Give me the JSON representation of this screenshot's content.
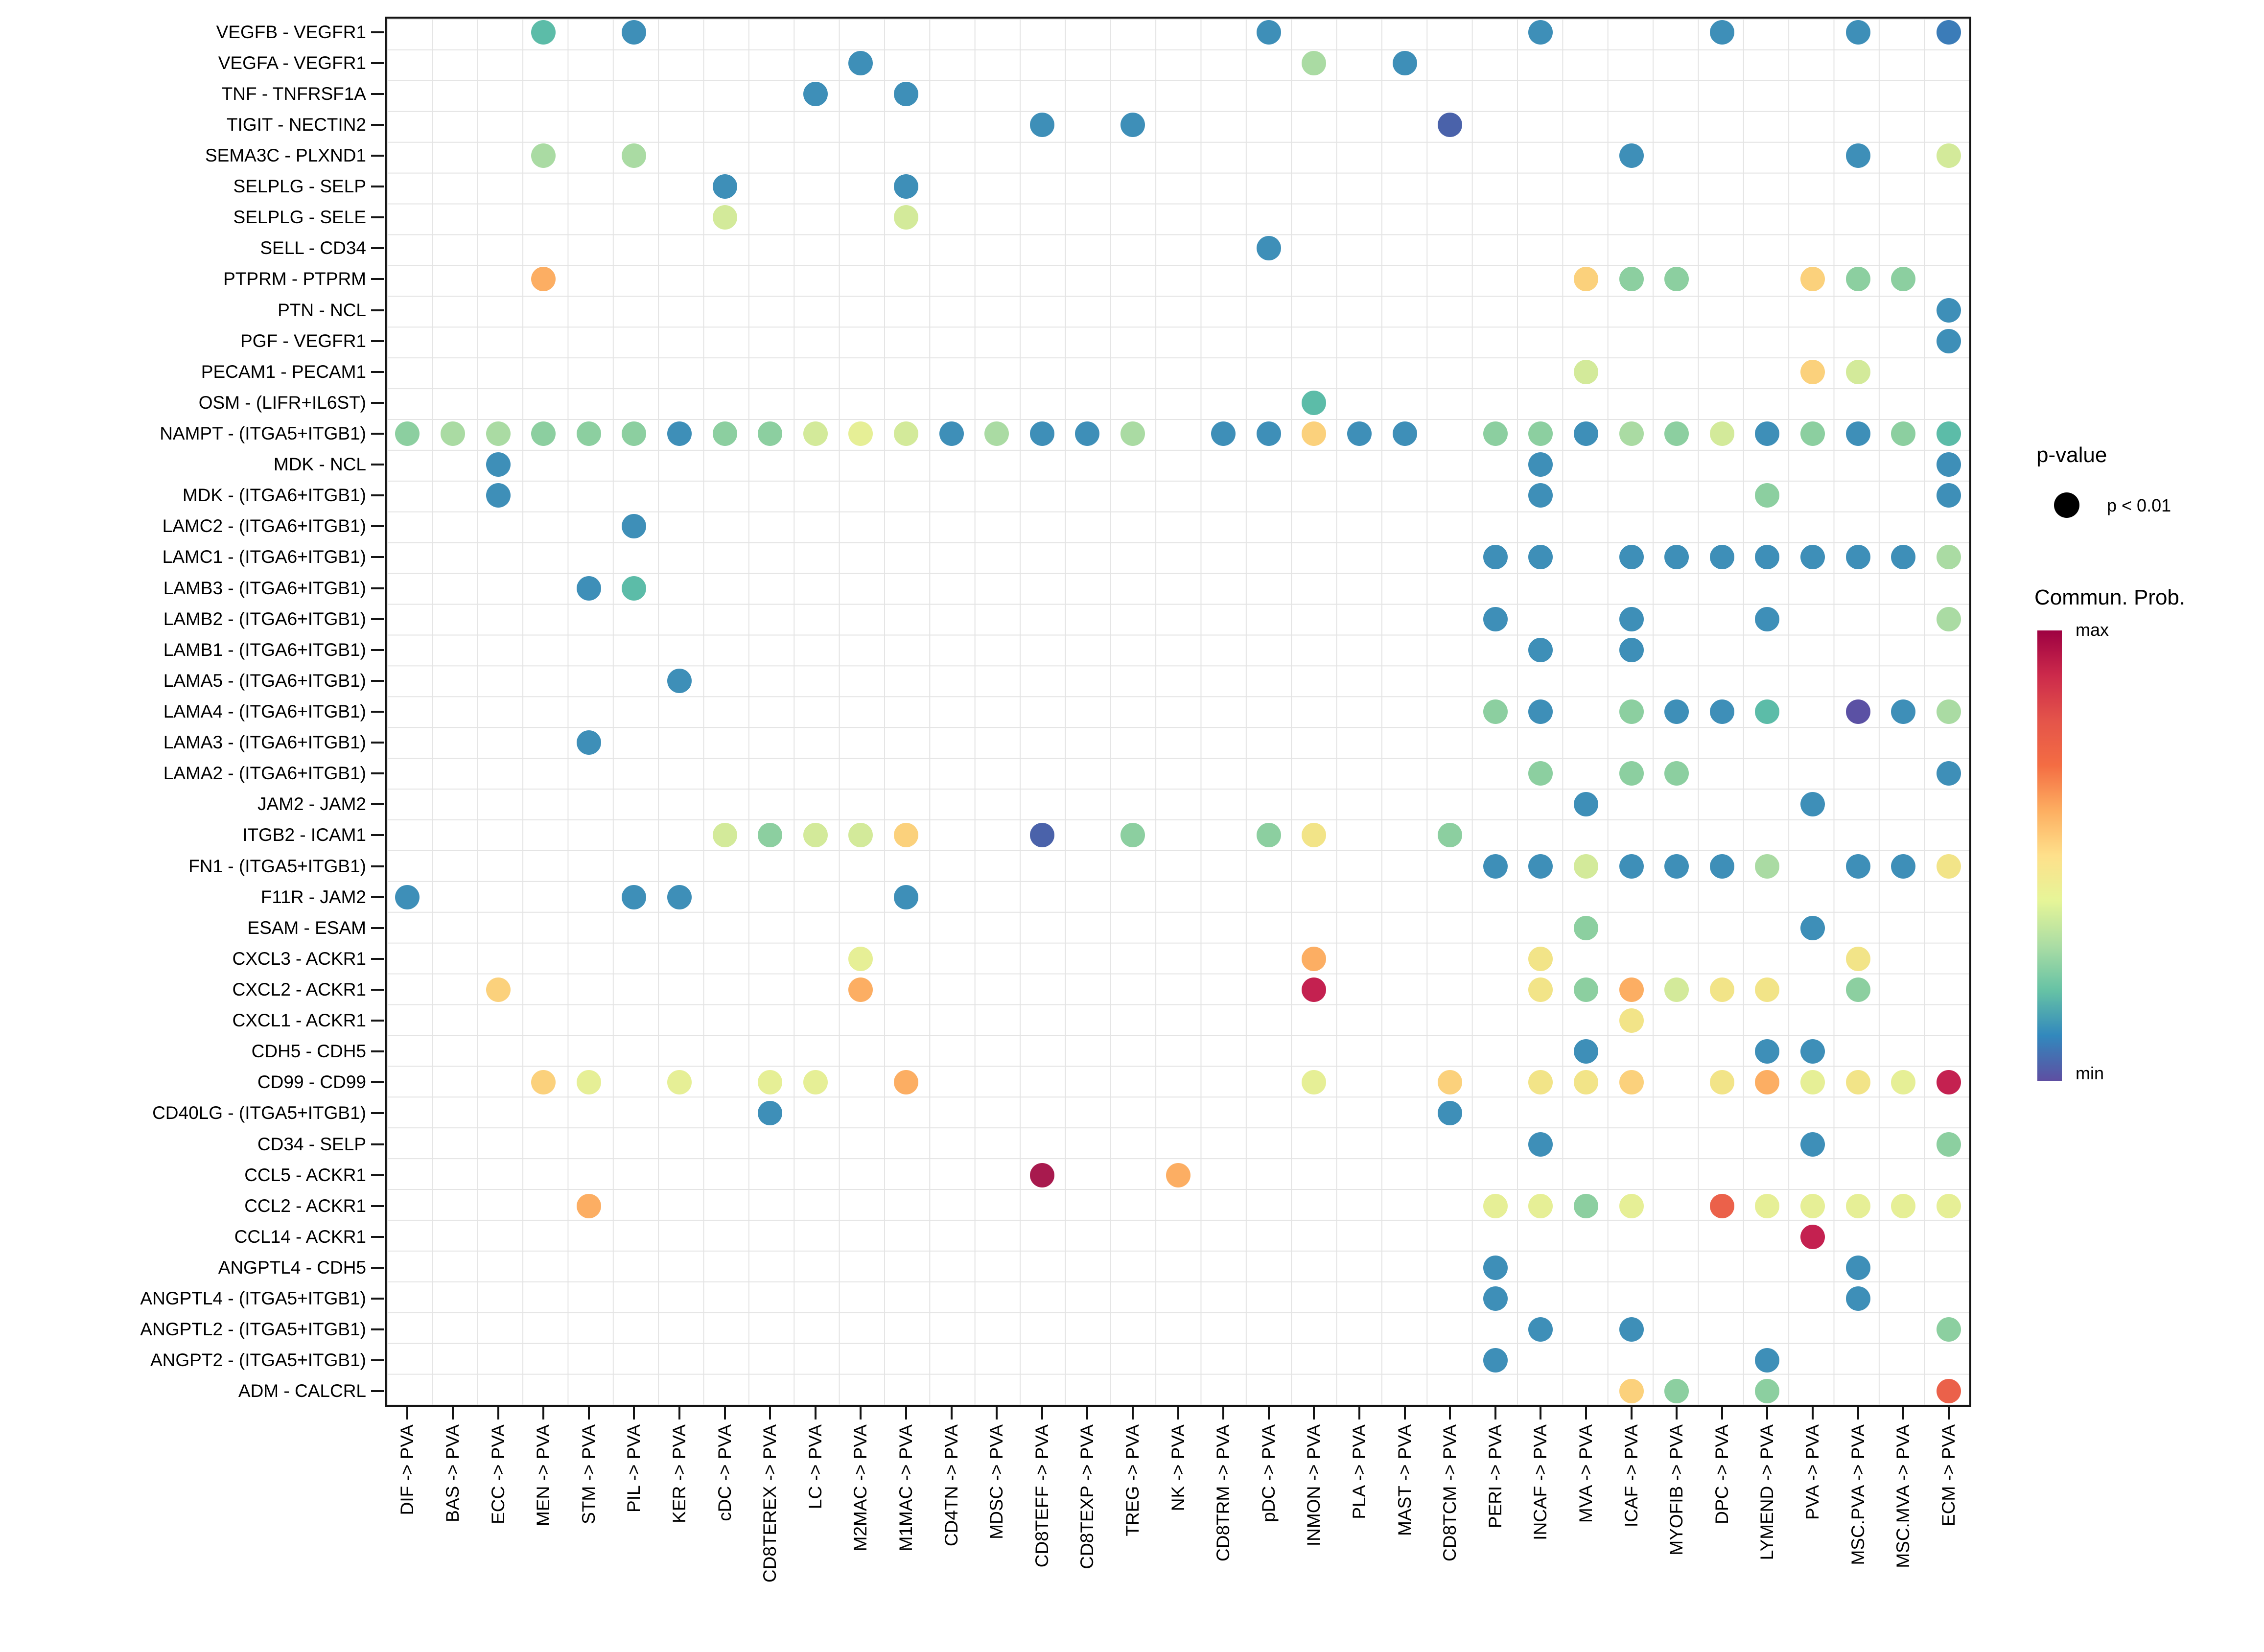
{
  "chart_data": {
    "type": "dotplot",
    "title": "",
    "xlabel": "",
    "ylabel": "",
    "grid": true,
    "y_pairs": [
      "VEGFB - VEGFR1",
      "VEGFA - VEGFR1",
      "TNF - TNFRSF1A",
      "TIGIT - NECTIN2",
      "SEMA3C - PLXND1",
      "SELPLG - SELP",
      "SELPLG - SELE",
      "SELL - CD34",
      "PTPRM - PTPRM",
      "PTN - NCL",
      "PGF - VEGFR1",
      "PECAM1 - PECAM1",
      "OSM - (LIFR+IL6ST)",
      "NAMPT - (ITGA5+ITGB1)",
      "MDK - NCL",
      "MDK - (ITGA6+ITGB1)",
      "LAMC2 - (ITGA6+ITGB1)",
      "LAMC1 - (ITGA6+ITGB1)",
      "LAMB3 - (ITGA6+ITGB1)",
      "LAMB2 - (ITGA6+ITGB1)",
      "LAMB1 - (ITGA6+ITGB1)",
      "LAMA5 - (ITGA6+ITGB1)",
      "LAMA4 - (ITGA6+ITGB1)",
      "LAMA3 - (ITGA6+ITGB1)",
      "LAMA2 - (ITGA6+ITGB1)",
      "JAM2 - JAM2",
      "ITGB2 - ICAM1",
      "FN1 - (ITGA5+ITGB1)",
      "F11R - JAM2",
      "ESAM - ESAM",
      "CXCL3 - ACKR1",
      "CXCL2 - ACKR1",
      "CXCL1 - ACKR1",
      "CDH5 - CDH5",
      "CD99 - CD99",
      "CD40LG - (ITGA5+ITGB1)",
      "CD34 - SELP",
      "CCL5 - ACKR1",
      "CCL2 - ACKR1",
      "CCL14 - ACKR1",
      "ANGPTL4 - CDH5",
      "ANGPTL4 - (ITGA5+ITGB1)",
      "ANGPTL2 - (ITGA5+ITGB1)",
      "ANGPT2 - (ITGA5+ITGB1)",
      "ADM - CALCRL"
    ],
    "x_labels": [
      "DIF -> PVA",
      "BAS -> PVA",
      "ECC -> PVA",
      "MEN -> PVA",
      "STM -> PVA",
      "PIL -> PVA",
      "KER -> PVA",
      "cDC -> PVA",
      "CD8TEREX -> PVA",
      "LC -> PVA",
      "M2MAC -> PVA",
      "M1MAC -> PVA",
      "CD4TN -> PVA",
      "MDSC -> PVA",
      "CD8TEFF -> PVA",
      "CD8TEXP -> PVA",
      "TREG -> PVA",
      "NK -> PVA",
      "CD8TRM -> PVA",
      "pDC -> PVA",
      "INMON -> PVA",
      "PLA -> PVA",
      "MAST -> PVA",
      "CD8TCM -> PVA",
      "PERI -> PVA",
      "INCAF -> PVA",
      "MVA -> PVA",
      "ICAF -> PVA",
      "MYOFIB -> PVA",
      "DPC -> PVA",
      "LYMEND -> PVA",
      "PVA -> PVA",
      "MSC.PVA -> PVA",
      "MSC.MVA -> PVA",
      "ECM -> PVA"
    ],
    "palette": {
      "blue": "#3e8fb8",
      "blue2": "#3b7cb8",
      "indigo": "#4a62aa",
      "purple": "#5b51a4",
      "teal": "#5cbca8",
      "green": "#8ccfa0",
      "ltgreen": "#aadba3",
      "ylwgreen": "#d3ea9a",
      "ltyellow": "#e6ef96",
      "yellow": "#f2e488",
      "ylworange": "#fbd17c",
      "orange": "#fcae63",
      "redorange": "#eb614a",
      "crimson": "#c42150",
      "darkred": "#a81a4e"
    },
    "points": [
      [
        1,
        4,
        "teal"
      ],
      [
        1,
        6,
        "blue"
      ],
      [
        1,
        20,
        "blue"
      ],
      [
        1,
        26,
        "blue"
      ],
      [
        1,
        30,
        "blue"
      ],
      [
        1,
        33,
        "blue"
      ],
      [
        1,
        35,
        "blue2"
      ],
      [
        2,
        11,
        "blue"
      ],
      [
        2,
        21,
        "ltgreen"
      ],
      [
        2,
        23,
        "blue"
      ],
      [
        3,
        10,
        "blue"
      ],
      [
        3,
        12,
        "blue"
      ],
      [
        4,
        15,
        "blue"
      ],
      [
        4,
        17,
        "blue"
      ],
      [
        4,
        24,
        "indigo"
      ],
      [
        5,
        4,
        "ltgreen"
      ],
      [
        5,
        6,
        "ltgreen"
      ],
      [
        5,
        28,
        "blue"
      ],
      [
        5,
        33,
        "blue"
      ],
      [
        5,
        35,
        "ylwgreen"
      ],
      [
        6,
        8,
        "blue"
      ],
      [
        6,
        12,
        "blue"
      ],
      [
        7,
        8,
        "ylwgreen"
      ],
      [
        7,
        12,
        "ylwgreen"
      ],
      [
        8,
        20,
        "blue"
      ],
      [
        9,
        4,
        "orange"
      ],
      [
        9,
        27,
        "ylworange"
      ],
      [
        9,
        28,
        "green"
      ],
      [
        9,
        29,
        "green"
      ],
      [
        9,
        32,
        "ylworange"
      ],
      [
        9,
        33,
        "green"
      ],
      [
        9,
        34,
        "green"
      ],
      [
        10,
        35,
        "blue"
      ],
      [
        11,
        35,
        "blue"
      ],
      [
        12,
        27,
        "ylwgreen"
      ],
      [
        12,
        32,
        "ylworange"
      ],
      [
        12,
        33,
        "ylwgreen"
      ],
      [
        13,
        21,
        "teal"
      ],
      [
        14,
        1,
        "green"
      ],
      [
        14,
        2,
        "ltgreen"
      ],
      [
        14,
        3,
        "ltgreen"
      ],
      [
        14,
        4,
        "green"
      ],
      [
        14,
        5,
        "green"
      ],
      [
        14,
        6,
        "green"
      ],
      [
        14,
        7,
        "blue"
      ],
      [
        14,
        8,
        "green"
      ],
      [
        14,
        9,
        "green"
      ],
      [
        14,
        10,
        "ylwgreen"
      ],
      [
        14,
        11,
        "ltyellow"
      ],
      [
        14,
        12,
        "ylwgreen"
      ],
      [
        14,
        13,
        "blue"
      ],
      [
        14,
        14,
        "ltgreen"
      ],
      [
        14,
        15,
        "blue"
      ],
      [
        14,
        16,
        "blue"
      ],
      [
        14,
        17,
        "ltgreen"
      ],
      [
        14,
        19,
        "blue"
      ],
      [
        14,
        20,
        "blue"
      ],
      [
        14,
        21,
        "ylworange"
      ],
      [
        14,
        22,
        "blue"
      ],
      [
        14,
        23,
        "blue"
      ],
      [
        14,
        25,
        "green"
      ],
      [
        14,
        26,
        "green"
      ],
      [
        14,
        27,
        "blue"
      ],
      [
        14,
        28,
        "ltgreen"
      ],
      [
        14,
        29,
        "green"
      ],
      [
        14,
        30,
        "ylwgreen"
      ],
      [
        14,
        31,
        "blue"
      ],
      [
        14,
        32,
        "green"
      ],
      [
        14,
        33,
        "blue"
      ],
      [
        14,
        34,
        "green"
      ],
      [
        14,
        35,
        "teal"
      ],
      [
        15,
        3,
        "blue"
      ],
      [
        15,
        26,
        "blue"
      ],
      [
        15,
        35,
        "blue"
      ],
      [
        16,
        3,
        "blue"
      ],
      [
        16,
        26,
        "blue"
      ],
      [
        16,
        31,
        "green"
      ],
      [
        16,
        35,
        "blue"
      ],
      [
        17,
        6,
        "blue"
      ],
      [
        18,
        25,
        "blue"
      ],
      [
        18,
        26,
        "blue"
      ],
      [
        18,
        28,
        "blue"
      ],
      [
        18,
        29,
        "blue"
      ],
      [
        18,
        30,
        "blue"
      ],
      [
        18,
        31,
        "blue"
      ],
      [
        18,
        32,
        "blue"
      ],
      [
        18,
        33,
        "blue"
      ],
      [
        18,
        34,
        "blue"
      ],
      [
        18,
        35,
        "ltgreen"
      ],
      [
        19,
        5,
        "blue"
      ],
      [
        19,
        6,
        "teal"
      ],
      [
        20,
        25,
        "blue"
      ],
      [
        20,
        28,
        "blue"
      ],
      [
        20,
        31,
        "blue"
      ],
      [
        20,
        35,
        "ltgreen"
      ],
      [
        21,
        26,
        "blue"
      ],
      [
        21,
        28,
        "blue"
      ],
      [
        22,
        7,
        "blue"
      ],
      [
        23,
        25,
        "green"
      ],
      [
        23,
        26,
        "blue"
      ],
      [
        23,
        28,
        "green"
      ],
      [
        23,
        29,
        "blue"
      ],
      [
        23,
        30,
        "blue"
      ],
      [
        23,
        31,
        "teal"
      ],
      [
        23,
        33,
        "purple"
      ],
      [
        23,
        34,
        "blue"
      ],
      [
        23,
        35,
        "ltgreen"
      ],
      [
        24,
        5,
        "blue"
      ],
      [
        25,
        26,
        "green"
      ],
      [
        25,
        28,
        "green"
      ],
      [
        25,
        29,
        "green"
      ],
      [
        25,
        35,
        "blue"
      ],
      [
        26,
        27,
        "blue"
      ],
      [
        26,
        32,
        "blue"
      ],
      [
        27,
        8,
        "ylwgreen"
      ],
      [
        27,
        9,
        "green"
      ],
      [
        27,
        10,
        "ylwgreen"
      ],
      [
        27,
        11,
        "ylwgreen"
      ],
      [
        27,
        12,
        "ylworange"
      ],
      [
        27,
        15,
        "indigo"
      ],
      [
        27,
        17,
        "green"
      ],
      [
        27,
        20,
        "green"
      ],
      [
        27,
        21,
        "yellow"
      ],
      [
        27,
        24,
        "green"
      ],
      [
        28,
        25,
        "blue"
      ],
      [
        28,
        26,
        "blue"
      ],
      [
        28,
        27,
        "ylwgreen"
      ],
      [
        28,
        28,
        "blue"
      ],
      [
        28,
        29,
        "blue"
      ],
      [
        28,
        30,
        "blue"
      ],
      [
        28,
        31,
        "ltgreen"
      ],
      [
        28,
        33,
        "blue"
      ],
      [
        28,
        34,
        "blue"
      ],
      [
        28,
        35,
        "yellow"
      ],
      [
        29,
        1,
        "blue"
      ],
      [
        29,
        6,
        "blue"
      ],
      [
        29,
        7,
        "blue"
      ],
      [
        29,
        12,
        "blue"
      ],
      [
        30,
        27,
        "green"
      ],
      [
        30,
        32,
        "blue"
      ],
      [
        31,
        11,
        "ltyellow"
      ],
      [
        31,
        21,
        "orange"
      ],
      [
        31,
        26,
        "yellow"
      ],
      [
        31,
        33,
        "yellow"
      ],
      [
        32,
        3,
        "ylworange"
      ],
      [
        32,
        11,
        "orange"
      ],
      [
        32,
        21,
        "crimson"
      ],
      [
        32,
        26,
        "yellow"
      ],
      [
        32,
        27,
        "green"
      ],
      [
        32,
        28,
        "orange"
      ],
      [
        32,
        29,
        "ylwgreen"
      ],
      [
        32,
        30,
        "yellow"
      ],
      [
        32,
        31,
        "yellow"
      ],
      [
        32,
        33,
        "green"
      ],
      [
        33,
        28,
        "yellow"
      ],
      [
        34,
        27,
        "blue"
      ],
      [
        34,
        31,
        "blue"
      ],
      [
        34,
        32,
        "blue"
      ],
      [
        35,
        4,
        "ylworange"
      ],
      [
        35,
        5,
        "ltyellow"
      ],
      [
        35,
        7,
        "ltyellow"
      ],
      [
        35,
        9,
        "ltyellow"
      ],
      [
        35,
        10,
        "ltyellow"
      ],
      [
        35,
        12,
        "orange"
      ],
      [
        35,
        21,
        "ltyellow"
      ],
      [
        35,
        24,
        "ylworange"
      ],
      [
        35,
        26,
        "yellow"
      ],
      [
        35,
        27,
        "yellow"
      ],
      [
        35,
        28,
        "ylworange"
      ],
      [
        35,
        30,
        "yellow"
      ],
      [
        35,
        31,
        "orange"
      ],
      [
        35,
        32,
        "ltyellow"
      ],
      [
        35,
        33,
        "yellow"
      ],
      [
        35,
        34,
        "ltyellow"
      ],
      [
        35,
        35,
        "crimson"
      ],
      [
        36,
        9,
        "blue"
      ],
      [
        36,
        24,
        "blue"
      ],
      [
        37,
        26,
        "blue"
      ],
      [
        37,
        32,
        "blue"
      ],
      [
        37,
        35,
        "green"
      ],
      [
        38,
        15,
        "darkred"
      ],
      [
        38,
        18,
        "orange"
      ],
      [
        39,
        5,
        "orange"
      ],
      [
        39,
        25,
        "ltyellow"
      ],
      [
        39,
        26,
        "ltyellow"
      ],
      [
        39,
        27,
        "green"
      ],
      [
        39,
        28,
        "ltyellow"
      ],
      [
        39,
        30,
        "redorange"
      ],
      [
        39,
        31,
        "ltyellow"
      ],
      [
        39,
        32,
        "ltyellow"
      ],
      [
        39,
        33,
        "ltyellow"
      ],
      [
        39,
        34,
        "ltyellow"
      ],
      [
        39,
        35,
        "ltyellow"
      ],
      [
        40,
        32,
        "crimson"
      ],
      [
        41,
        25,
        "blue"
      ],
      [
        41,
        33,
        "blue"
      ],
      [
        42,
        25,
        "blue"
      ],
      [
        42,
        33,
        "blue"
      ],
      [
        43,
        26,
        "blue"
      ],
      [
        43,
        28,
        "blue"
      ],
      [
        43,
        35,
        "green"
      ],
      [
        44,
        25,
        "blue"
      ],
      [
        44,
        31,
        "blue"
      ],
      [
        45,
        28,
        "ylworange"
      ],
      [
        45,
        29,
        "green"
      ],
      [
        45,
        31,
        "green"
      ],
      [
        45,
        35,
        "redorange"
      ]
    ]
  },
  "legend": {
    "pvalue_title": "p-value",
    "pvalue_item": "p < 0.01",
    "colorbar_title": "Commun. Prob.",
    "max_label": "max",
    "min_label": "min",
    "colorbar_stops": [
      "#9e0142",
      "#cc2a4b",
      "#e4544a",
      "#f46d43",
      "#fdae61",
      "#fee08b",
      "#e6f598",
      "#abdda4",
      "#66c2a5",
      "#3288bd",
      "#5e4fa2"
    ]
  },
  "layout_hints": {
    "legend_position": "right",
    "x_tick_rotation": 90
  }
}
